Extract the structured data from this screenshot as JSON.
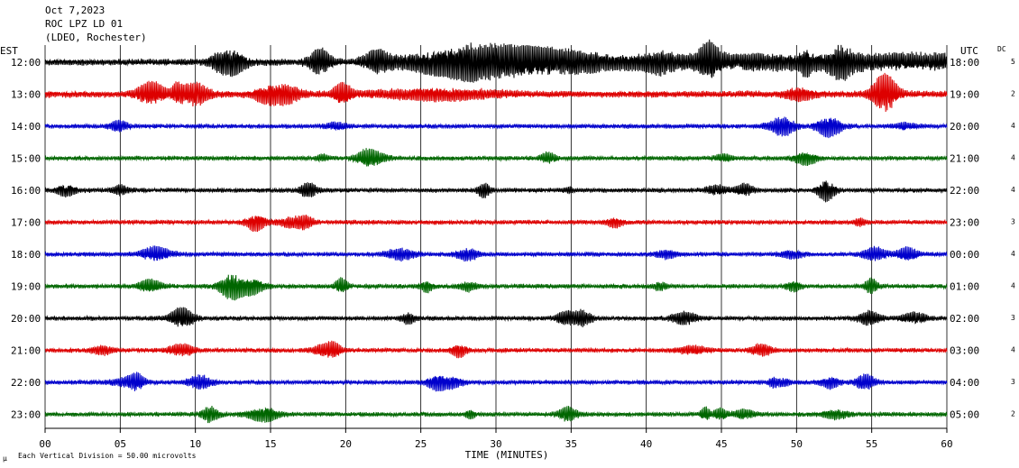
{
  "header": {
    "date": "Oct 7,2023",
    "station": "ROC LPZ LD 01",
    "network": "(LDEO, Rochester)"
  },
  "left_zone_label": "EST",
  "right_zone_label": "UTC",
  "dc_label": "DC",
  "footer": {
    "scale_note": "Each Vertical Division =   50.00 microvolts",
    "corner_mark": "μ"
  },
  "chart_data": {
    "type": "line",
    "title": "",
    "xlabel": "TIME (MINUTES)",
    "ylabel": "",
    "xlim": [
      0,
      60
    ],
    "x_ticks": [
      "00",
      "05",
      "10",
      "15",
      "20",
      "25",
      "30",
      "35",
      "40",
      "45",
      "50",
      "55",
      "60"
    ],
    "x_tick_values": [
      0,
      5,
      10,
      15,
      20,
      25,
      30,
      35,
      40,
      45,
      50,
      55,
      60
    ],
    "grid": "vertical lines every 5 minutes",
    "trace_colors_cycle": [
      "#000000",
      "#dd0000",
      "#0000cc",
      "#006600"
    ],
    "series": [
      {
        "left_label": "12:00",
        "right_label": "18:00",
        "dc": "5",
        "color": "#000000",
        "amplitude_level": "high",
        "event": {
          "start_min": 22,
          "peak_min": 28.5,
          "end_min": 37
        }
      },
      {
        "left_label": "13:00",
        "right_label": "19:00",
        "dc": "2",
        "color": "#dd0000",
        "amplitude_level": "medium"
      },
      {
        "left_label": "14:00",
        "right_label": "20:00",
        "dc": "4",
        "color": "#0000cc",
        "amplitude_level": "low"
      },
      {
        "left_label": "15:00",
        "right_label": "21:00",
        "dc": "4",
        "color": "#006600",
        "amplitude_level": "low"
      },
      {
        "left_label": "16:00",
        "right_label": "22:00",
        "dc": "4",
        "color": "#000000",
        "amplitude_level": "low"
      },
      {
        "left_label": "17:00",
        "right_label": "23:00",
        "dc": "3",
        "color": "#dd0000",
        "amplitude_level": "low"
      },
      {
        "left_label": "18:00",
        "right_label": "00:00",
        "dc": "4",
        "color": "#0000cc",
        "amplitude_level": "low"
      },
      {
        "left_label": "19:00",
        "right_label": "01:00",
        "dc": "4",
        "color": "#006600",
        "amplitude_level": "low"
      },
      {
        "left_label": "20:00",
        "right_label": "02:00",
        "dc": "3",
        "color": "#000000",
        "amplitude_level": "low"
      },
      {
        "left_label": "21:00",
        "right_label": "03:00",
        "dc": "4",
        "color": "#dd0000",
        "amplitude_level": "low"
      },
      {
        "left_label": "22:00",
        "right_label": "04:00",
        "dc": "3",
        "color": "#0000cc",
        "amplitude_level": "low"
      },
      {
        "left_label": "23:00",
        "right_label": "05:00",
        "dc": "2",
        "color": "#006600",
        "amplitude_level": "low"
      }
    ]
  }
}
